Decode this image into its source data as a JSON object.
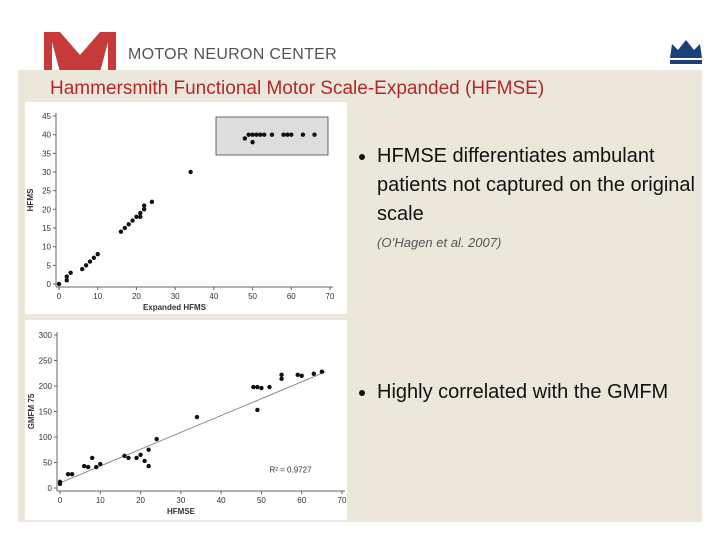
{
  "header": {
    "logo_text": "MOTOR NEURON CENTER"
  },
  "slide_title": "Hammersmith Functional Motor Scale-Expanded (HFMSE)",
  "bullets": [
    {
      "text": "HFMSE differentiates ambulant patients not captured on the original scale",
      "note": "(O’Hagen et al. 2007)"
    },
    {
      "text": "Highly correlated with the GMFM"
    }
  ],
  "chart_data": [
    {
      "type": "scatter",
      "xlabel": "Expanded HFMS",
      "ylabel": "HFMS",
      "color": "#111111",
      "x": [
        0,
        2,
        2,
        3,
        6,
        7,
        8,
        9,
        10,
        16,
        17,
        18,
        19,
        20,
        21,
        22,
        21,
        22,
        24,
        34,
        48,
        49,
        50,
        50,
        51,
        52,
        53,
        55,
        58,
        59,
        60,
        63,
        66
      ],
      "values": [
        0,
        1,
        2,
        3,
        4,
        5,
        6,
        7,
        8,
        14,
        15,
        16,
        17,
        18,
        19,
        20,
        18,
        21,
        22,
        30,
        39,
        40,
        38,
        40,
        40,
        40,
        40,
        40,
        40,
        40,
        40,
        40,
        40
      ],
      "xlim": [
        0,
        70
      ],
      "xticks": [
        0,
        10,
        20,
        30,
        40,
        50,
        60,
        70
      ],
      "ylim": [
        0,
        45
      ],
      "yticks": [
        0,
        5,
        10,
        15,
        20,
        25,
        30,
        35,
        40,
        45
      ]
    },
    {
      "type": "scatter",
      "xlabel": "HFMSE",
      "ylabel": "GMFM 75",
      "color": "#111111",
      "annotation": "R² = 0.9727",
      "x": [
        0,
        0,
        2,
        3,
        6,
        7,
        8,
        9,
        10,
        16,
        17,
        19,
        20,
        21,
        22,
        22,
        24,
        34,
        48,
        49,
        49,
        50,
        52,
        55,
        55,
        59,
        60,
        63,
        65
      ],
      "values": [
        12,
        8,
        27,
        27,
        43,
        41,
        59,
        41,
        47,
        63,
        59,
        59,
        65,
        53,
        43,
        75,
        96,
        139,
        198,
        153,
        198,
        196,
        198,
        222,
        214,
        222,
        220,
        224,
        228
      ],
      "trendline": {
        "x": [
          0,
          66
        ],
        "values": [
          10,
          228
        ]
      },
      "xlim": [
        0,
        70
      ],
      "xticks": [
        0,
        10,
        20,
        30,
        40,
        50,
        60,
        70
      ],
      "ylim": [
        0,
        300
      ],
      "yticks": [
        0,
        50,
        100,
        150,
        200,
        250,
        300
      ]
    }
  ]
}
